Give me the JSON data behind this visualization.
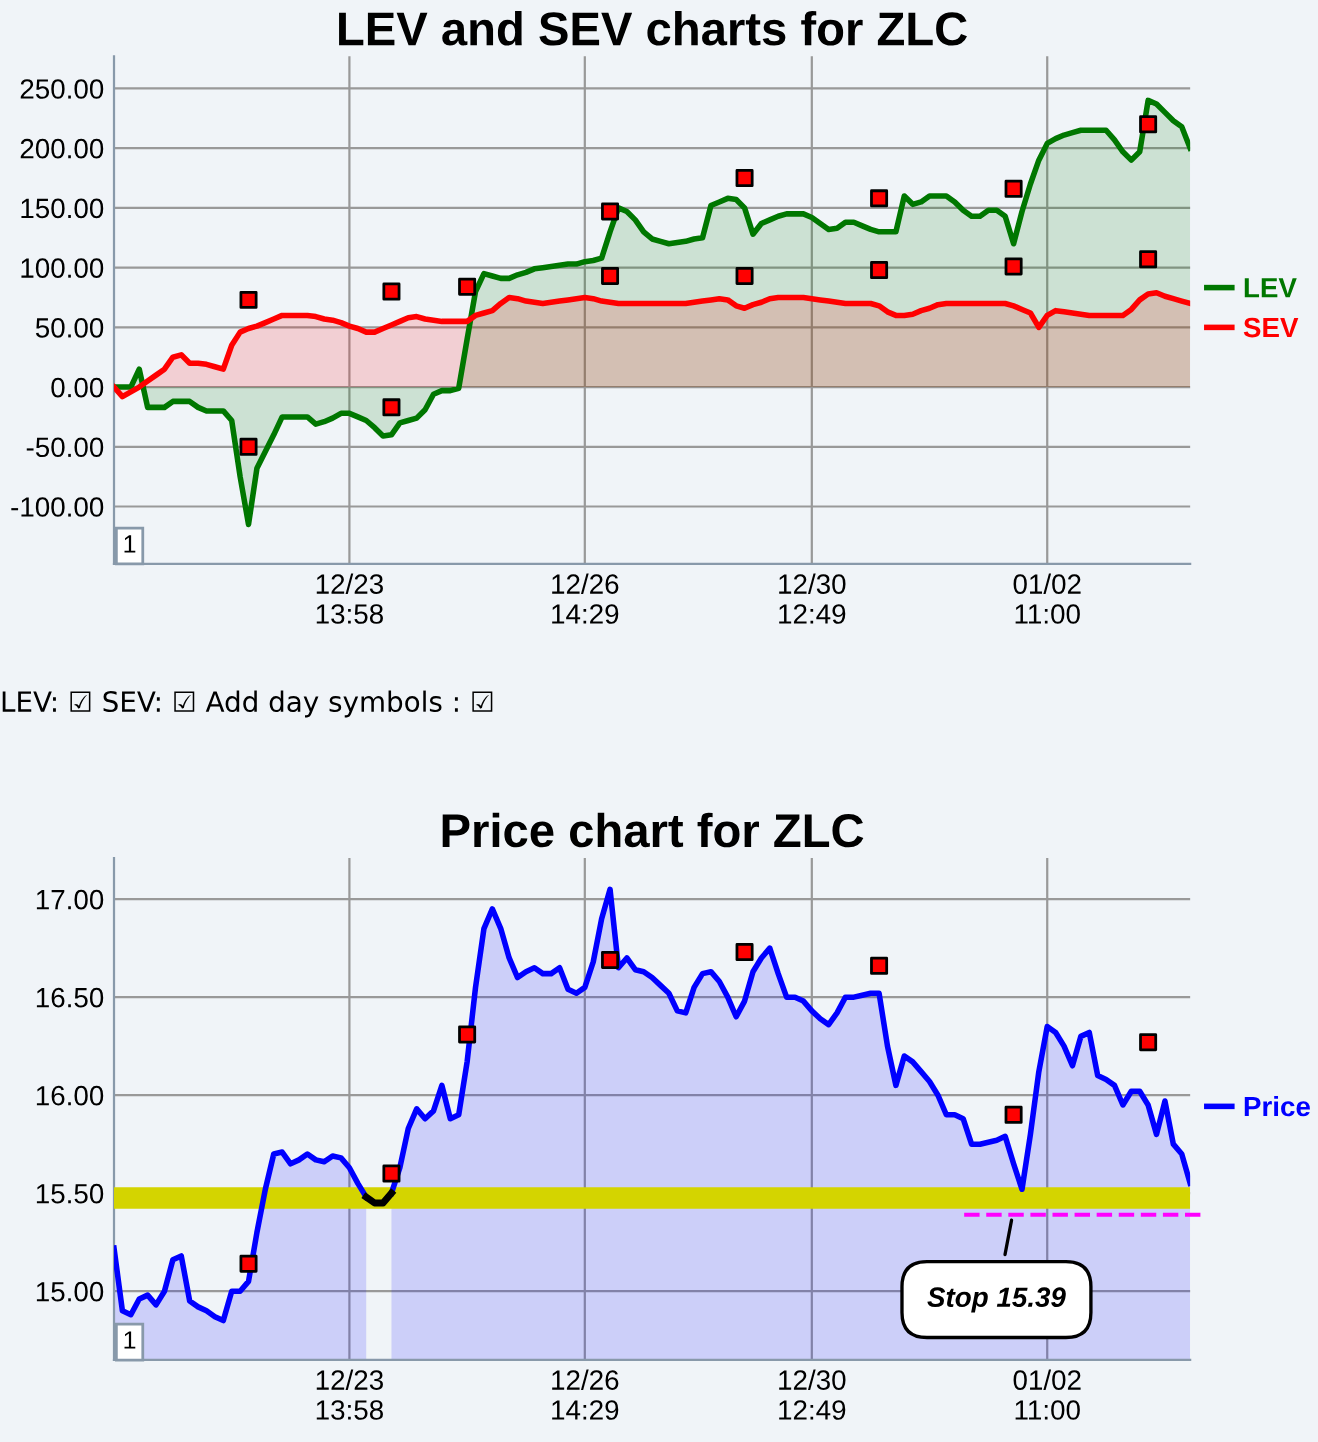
{
  "chart_data": [
    {
      "type": "area",
      "title": "LEV and SEV charts for ZLC",
      "ylim": [
        -148,
        277
      ],
      "categories": [
        null,
        null,
        null,
        null,
        null,
        null,
        null,
        null,
        null,
        null,
        null,
        null,
        null,
        null,
        null,
        null,
        null,
        null,
        null,
        null,
        null,
        null,
        null,
        null,
        null,
        null,
        null,
        null,
        "12/23\n13:58",
        null,
        null,
        null,
        null,
        null,
        null,
        null,
        null,
        null,
        null,
        null,
        null,
        null,
        null,
        null,
        null,
        null,
        null,
        null,
        null,
        null,
        null,
        null,
        null,
        null,
        null,
        null,
        "12/26\n14:29",
        null,
        null,
        null,
        null,
        null,
        null,
        null,
        null,
        null,
        null,
        null,
        null,
        null,
        null,
        null,
        null,
        null,
        null,
        null,
        null,
        null,
        null,
        null,
        null,
        null,
        null,
        "12/30\n12:49",
        null,
        null,
        null,
        null,
        null,
        null,
        null,
        null,
        null,
        null,
        null,
        null,
        null,
        null,
        null,
        null,
        null,
        null,
        null,
        null,
        null,
        null,
        null,
        null,
        null,
        null,
        null,
        "01/02\n11:00",
        null,
        null,
        null,
        null,
        null,
        null,
        null,
        null,
        null,
        null,
        null,
        null,
        null,
        null,
        null,
        null,
        null
      ],
      "yticks": [
        {
          "value": -100,
          "label": "-100.00"
        },
        {
          "value": -50,
          "label": "-50.00"
        },
        {
          "value": 0,
          "label": "0.00"
        },
        {
          "value": 50,
          "label": "50.00"
        },
        {
          "value": 100,
          "label": "100.00"
        },
        {
          "value": 150,
          "label": "150.00"
        },
        {
          "value": 200,
          "label": "200.00"
        },
        {
          "value": 250,
          "label": "250.00"
        }
      ],
      "grid": true,
      "legend": "right",
      "annotations": [
        "1",
        "LEV: ☑ SEV: ☑ Add day symbols : ☑"
      ],
      "series": [
        {
          "name": "LEV",
          "color": "#007700",
          "values": [
            0,
            0,
            0,
            15,
            -17,
            -17,
            -17,
            -12,
            -12,
            -12,
            -17,
            -20,
            -20,
            -20,
            -28,
            -75,
            -115,
            -68,
            -54,
            -40,
            -25,
            -25,
            -25,
            -25,
            -31,
            -29,
            -26,
            -22,
            -22,
            -25,
            -28,
            -34,
            -41,
            -40,
            -30,
            -28,
            -26,
            -19,
            -6,
            -3,
            -3,
            -1,
            40,
            80,
            95,
            93,
            91,
            91,
            94,
            96,
            99,
            100,
            101,
            102,
            103,
            103,
            105,
            106,
            108,
            130,
            150,
            147,
            140,
            130,
            124,
            122,
            120,
            121,
            122,
            124,
            125,
            152,
            155,
            158,
            157,
            150,
            128,
            137,
            140,
            143,
            145,
            145,
            145,
            142,
            137,
            132,
            133,
            138,
            138,
            135,
            132,
            130,
            130,
            130,
            160,
            153,
            155,
            160,
            160,
            160,
            155,
            148,
            143,
            143,
            148,
            148,
            143,
            120,
            147,
            170,
            190,
            204,
            208,
            211,
            213,
            215,
            215,
            215,
            215,
            207,
            197,
            190,
            197,
            240,
            237,
            230,
            223,
            218,
            200
          ]
        },
        {
          "name": "SEV",
          "color": "#ff0000",
          "values": [
            0,
            -8,
            -4,
            0,
            5,
            10,
            15,
            25,
            27,
            20,
            20,
            19,
            17,
            15,
            35,
            46,
            49,
            51,
            54,
            57,
            60,
            60,
            60,
            60,
            59,
            57,
            56,
            54,
            51,
            49,
            46,
            46,
            49,
            52,
            55,
            58,
            59,
            57,
            56,
            55,
            55,
            55,
            55,
            60,
            62,
            64,
            70,
            75,
            74,
            72,
            71,
            70,
            71,
            72,
            73,
            74,
            75,
            74,
            72,
            71,
            70,
            70,
            70,
            70,
            70,
            70,
            70,
            70,
            70,
            71,
            72,
            73,
            74,
            73,
            68,
            66,
            69,
            71,
            74,
            75,
            75,
            75,
            75,
            74,
            73,
            72,
            71,
            70,
            70,
            70,
            70,
            68,
            63,
            60,
            60,
            61,
            64,
            66,
            69,
            70,
            70,
            70,
            70,
            70,
            70,
            70,
            70,
            68,
            65,
            62,
            50,
            60,
            64,
            63,
            62,
            61,
            60,
            60,
            60,
            60,
            60,
            65,
            73,
            78,
            79,
            76,
            74,
            72,
            70
          ]
        },
        {
          "type": "scatter",
          "color": "#ff0000",
          "marker": "square",
          "values": [
            null,
            null,
            null,
            null,
            null,
            null,
            null,
            null,
            null,
            null,
            null,
            null,
            null,
            null,
            null,
            null,
            73,
            null,
            null,
            null,
            null,
            null,
            null,
            null,
            null,
            null,
            null,
            null,
            null,
            null,
            null,
            null,
            null,
            80,
            null,
            null,
            null,
            null,
            null,
            null,
            null,
            null,
            84,
            null,
            null,
            null,
            null,
            null,
            null,
            null,
            null,
            null,
            null,
            null,
            null,
            null,
            null,
            null,
            null,
            147,
            null,
            null,
            null,
            null,
            null,
            null,
            null,
            null,
            null,
            null,
            null,
            null,
            null,
            null,
            null,
            175,
            null,
            null,
            null,
            null,
            null,
            null,
            null,
            null,
            null,
            null,
            null,
            null,
            null,
            null,
            null,
            158,
            null,
            null,
            null,
            null,
            null,
            null,
            null,
            null,
            null,
            null,
            null,
            null,
            null,
            null,
            null,
            166,
            null,
            null,
            null,
            null,
            null,
            null,
            null,
            null,
            null,
            null,
            null,
            null,
            null,
            null,
            null,
            220,
            null,
            null,
            null,
            null,
            null
          ]
        },
        {
          "type": "scatter",
          "color": "#ff0000",
          "marker": "square",
          "values": [
            null,
            null,
            null,
            null,
            null,
            null,
            null,
            null,
            null,
            null,
            null,
            null,
            null,
            null,
            null,
            null,
            -50,
            null,
            null,
            null,
            null,
            null,
            null,
            null,
            null,
            null,
            null,
            null,
            null,
            null,
            null,
            null,
            null,
            -17,
            null,
            null,
            null,
            null,
            null,
            null,
            null,
            null,
            null,
            null,
            null,
            null,
            null,
            null,
            null,
            null,
            null,
            null,
            null,
            null,
            null,
            null,
            null,
            null,
            null,
            93,
            null,
            null,
            null,
            null,
            null,
            null,
            null,
            null,
            null,
            null,
            null,
            null,
            null,
            null,
            null,
            93,
            null,
            null,
            null,
            null,
            null,
            null,
            null,
            null,
            null,
            null,
            null,
            null,
            null,
            null,
            null,
            98,
            null,
            null,
            null,
            null,
            null,
            null,
            null,
            null,
            null,
            null,
            null,
            null,
            null,
            null,
            null,
            101,
            null,
            null,
            null,
            null,
            null,
            null,
            null,
            null,
            null,
            null,
            null,
            null,
            null,
            null,
            null,
            107,
            null,
            null,
            null,
            null,
            null
          ]
        }
      ]
    },
    {
      "type": "area",
      "title": "Price chart for ZLC",
      "ylim": [
        14.65,
        17.21
      ],
      "categories": [
        null,
        null,
        null,
        null,
        null,
        null,
        null,
        null,
        null,
        null,
        null,
        null,
        null,
        null,
        null,
        null,
        null,
        null,
        null,
        null,
        null,
        null,
        null,
        null,
        null,
        null,
        null,
        null,
        "12/23\n13:58",
        null,
        null,
        null,
        null,
        null,
        null,
        null,
        null,
        null,
        null,
        null,
        null,
        null,
        null,
        null,
        null,
        null,
        null,
        null,
        null,
        null,
        null,
        null,
        null,
        null,
        null,
        null,
        "12/26\n14:29",
        null,
        null,
        null,
        null,
        null,
        null,
        null,
        null,
        null,
        null,
        null,
        null,
        null,
        null,
        null,
        null,
        null,
        null,
        null,
        null,
        null,
        null,
        null,
        null,
        null,
        null,
        "12/30\n12:49",
        null,
        null,
        null,
        null,
        null,
        null,
        null,
        null,
        null,
        null,
        null,
        null,
        null,
        null,
        null,
        null,
        null,
        null,
        null,
        null,
        null,
        null,
        null,
        null,
        null,
        null,
        null,
        "01/02\n11:00",
        null,
        null,
        null,
        null,
        null,
        null,
        null,
        null,
        null,
        null,
        null,
        null,
        null,
        null,
        null,
        null,
        null
      ],
      "yticks": [
        {
          "value": 15,
          "label": "15.00"
        },
        {
          "value": 15.5,
          "label": "15.50"
        },
        {
          "value": 16,
          "label": "16.00"
        },
        {
          "value": 16.5,
          "label": "16.50"
        },
        {
          "value": 17,
          "label": "17.00"
        }
      ],
      "grid": true,
      "legend": "right",
      "annotations": [
        "1"
      ],
      "bands": [
        {
          "axis": "y",
          "from": 15.42,
          "to": 15.53,
          "color": "#d4d400"
        }
      ],
      "ref_lines": [
        {
          "axis": "y",
          "value": 15.39,
          "label": "Stop 15.39",
          "color": "#ff00ff",
          "line_style": "dashed"
        }
      ],
      "series": [
        {
          "name": "Price",
          "color": "#0000ff",
          "values": [
            15.22,
            14.9,
            14.88,
            14.96,
            14.98,
            14.93,
            15.0,
            15.16,
            15.18,
            14.95,
            14.92,
            14.9,
            14.87,
            14.85,
            15.0,
            15.0,
            15.05,
            15.3,
            15.52,
            15.7,
            15.71,
            15.65,
            15.67,
            15.7,
            15.67,
            15.66,
            15.69,
            15.68,
            15.63,
            15.55,
            15.48,
            null,
            null,
            15.5,
            15.63,
            15.83,
            15.93,
            15.88,
            15.92,
            16.05,
            15.88,
            15.9,
            16.17,
            16.55,
            16.85,
            16.95,
            16.85,
            16.7,
            16.6,
            16.63,
            16.65,
            16.62,
            16.62,
            16.65,
            16.54,
            16.52,
            16.55,
            16.68,
            16.9,
            17.05,
            16.65,
            16.7,
            16.64,
            16.63,
            16.6,
            16.56,
            16.52,
            16.43,
            16.42,
            16.55,
            16.62,
            16.63,
            16.58,
            16.5,
            16.4,
            16.48,
            16.63,
            16.7,
            16.75,
            16.62,
            16.5,
            16.5,
            16.48,
            16.43,
            16.39,
            16.36,
            16.42,
            16.5,
            16.5,
            16.51,
            16.52,
            16.52,
            16.25,
            16.05,
            16.2,
            16.17,
            16.12,
            16.07,
            16.0,
            15.9,
            15.9,
            15.88,
            15.75,
            15.75,
            15.76,
            15.77,
            15.79,
            15.65,
            15.52,
            15.8,
            16.12,
            16.35,
            16.32,
            16.25,
            16.15,
            16.3,
            16.32,
            16.1,
            16.08,
            16.05,
            15.95,
            16.02,
            16.02,
            15.95,
            15.8,
            15.97,
            15.75,
            15.7,
            15.55
          ]
        },
        {
          "type": "line",
          "color": "#000000",
          "values": [
            null,
            null,
            null,
            null,
            null,
            null,
            null,
            null,
            null,
            null,
            null,
            null,
            null,
            null,
            null,
            null,
            null,
            null,
            null,
            null,
            null,
            null,
            null,
            null,
            null,
            null,
            null,
            null,
            null,
            null,
            15.48,
            15.45,
            15.45,
            15.5,
            null,
            null,
            null,
            null,
            null,
            null,
            null,
            null,
            null,
            null,
            null,
            null,
            null,
            null,
            null,
            null,
            null,
            null,
            null,
            null,
            null,
            null,
            null,
            null,
            null,
            null,
            null,
            null,
            null,
            null,
            null,
            null,
            null,
            null,
            null,
            null,
            null,
            null,
            null,
            null,
            null,
            null,
            null,
            null,
            null,
            null,
            null,
            null,
            null,
            null,
            null,
            null,
            null,
            null,
            null,
            null,
            null,
            null,
            null,
            null,
            null,
            null,
            null,
            null,
            null,
            null,
            null,
            null,
            null,
            null,
            null,
            null,
            null,
            null,
            null,
            null,
            null,
            null,
            null,
            null,
            null,
            null,
            null,
            null,
            null,
            null,
            null,
            null,
            null,
            null,
            null,
            null,
            null,
            null,
            null
          ]
        },
        {
          "type": "scatter",
          "color": "#ff0000",
          "marker": "square",
          "values": [
            null,
            null,
            null,
            null,
            null,
            null,
            null,
            null,
            null,
            null,
            null,
            null,
            null,
            null,
            null,
            null,
            15.14,
            null,
            null,
            null,
            null,
            null,
            null,
            null,
            null,
            null,
            null,
            null,
            null,
            null,
            null,
            null,
            null,
            15.6,
            null,
            null,
            null,
            null,
            null,
            null,
            null,
            null,
            16.31,
            null,
            null,
            null,
            null,
            null,
            null,
            null,
            null,
            null,
            null,
            null,
            null,
            null,
            null,
            null,
            null,
            16.69,
            null,
            null,
            null,
            null,
            null,
            null,
            null,
            null,
            null,
            null,
            null,
            null,
            null,
            null,
            null,
            16.73,
            null,
            null,
            null,
            null,
            null,
            null,
            null,
            null,
            null,
            null,
            null,
            null,
            null,
            null,
            null,
            16.66,
            null,
            null,
            null,
            null,
            null,
            null,
            null,
            null,
            null,
            null,
            null,
            null,
            null,
            null,
            null,
            15.9,
            null,
            null,
            null,
            null,
            null,
            null,
            null,
            null,
            null,
            null,
            null,
            null,
            null,
            null,
            null,
            16.27,
            null,
            null,
            null,
            null,
            null
          ]
        }
      ]
    }
  ]
}
